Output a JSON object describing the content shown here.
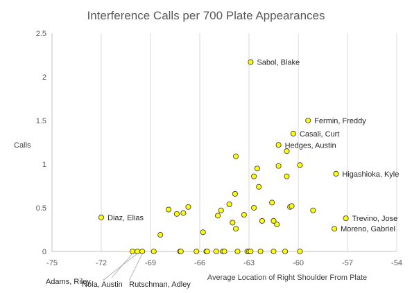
{
  "chart_data": {
    "type": "scatter",
    "title": "Interference Calls per 700 Plate Appearances",
    "xlabel": "Average Location of Right Shoulder From Plate",
    "ylabel": "Calls",
    "xlim": [
      -75,
      -54
    ],
    "ylim": [
      0,
      2.5
    ],
    "x_ticks": [
      "-75",
      "-72",
      "-69",
      "-66",
      "-63",
      "-60",
      "-57",
      "-54"
    ],
    "y_ticks": [
      "0",
      "0.5",
      "1",
      "1.5",
      "2",
      "2.5"
    ],
    "grid": "vertical-major",
    "marker_color": "#FFFF00",
    "marker_edge_color": "#404040",
    "series": [
      {
        "points": [
          {
            "x": -72.0,
            "y": 0.39,
            "label": "Diaz, Elias"
          },
          {
            "x": -70.1,
            "y": 0.0,
            "label": "Adams, Riley"
          },
          {
            "x": -69.8,
            "y": 0.0,
            "label": "Nola, Austin"
          },
          {
            "x": -69.5,
            "y": 0.0,
            "label": "Rutschman, Adley"
          },
          {
            "x": -68.8,
            "y": 0.0
          },
          {
            "x": -68.4,
            "y": 0.19
          },
          {
            "x": -67.9,
            "y": 0.48
          },
          {
            "x": -67.4,
            "y": 0.43
          },
          {
            "x": -67.2,
            "y": 0.0
          },
          {
            "x": -67.15,
            "y": 0.0
          },
          {
            "x": -67.0,
            "y": 0.44
          },
          {
            "x": -66.7,
            "y": 0.51
          },
          {
            "x": -66.2,
            "y": 0.0
          },
          {
            "x": -65.8,
            "y": 0.22
          },
          {
            "x": -65.6,
            "y": 0.0
          },
          {
            "x": -65.55,
            "y": 0.0
          },
          {
            "x": -65.0,
            "y": 0.0
          },
          {
            "x": -64.9,
            "y": 0.41
          },
          {
            "x": -64.7,
            "y": 0.47
          },
          {
            "x": -64.6,
            "y": 0.0
          },
          {
            "x": -64.5,
            "y": 0.0
          },
          {
            "x": -64.2,
            "y": 0.54
          },
          {
            "x": -64.0,
            "y": 0.33
          },
          {
            "x": -63.8,
            "y": 0.26
          },
          {
            "x": -63.85,
            "y": 0.66
          },
          {
            "x": -63.8,
            "y": 1.09
          },
          {
            "x": -63.7,
            "y": 0.0
          },
          {
            "x": -63.3,
            "y": 0.42
          },
          {
            "x": -63.1,
            "y": 0.0
          },
          {
            "x": -63.0,
            "y": 0.0
          },
          {
            "x": -62.9,
            "y": 0.0
          },
          {
            "x": -62.9,
            "y": 2.17,
            "label": "Sabol, Blake"
          },
          {
            "x": -62.7,
            "y": 0.86
          },
          {
            "x": -62.7,
            "y": 0.5
          },
          {
            "x": -62.5,
            "y": 0.95
          },
          {
            "x": -62.4,
            "y": 0.74
          },
          {
            "x": -62.3,
            "y": 0.0
          },
          {
            "x": -62.2,
            "y": 0.35
          },
          {
            "x": -61.6,
            "y": 0.56
          },
          {
            "x": -61.5,
            "y": 0.0
          },
          {
            "x": -61.5,
            "y": 0.35
          },
          {
            "x": -61.3,
            "y": 0.31
          },
          {
            "x": -61.2,
            "y": 0.98
          },
          {
            "x": -61.2,
            "y": 1.22,
            "label": "Hedges, Austin"
          },
          {
            "x": -60.8,
            "y": 0.0
          },
          {
            "x": -60.7,
            "y": 1.15
          },
          {
            "x": -60.7,
            "y": 0.86
          },
          {
            "x": -60.5,
            "y": 0.51
          },
          {
            "x": -60.4,
            "y": 0.52
          },
          {
            "x": -60.3,
            "y": 1.35,
            "label": "Casali, Curt"
          },
          {
            "x": -59.9,
            "y": 0.0
          },
          {
            "x": -59.9,
            "y": 0.99
          },
          {
            "x": -59.4,
            "y": 1.5,
            "label": "Fermin, Freddy"
          },
          {
            "x": -59.1,
            "y": 0.47
          },
          {
            "x": -57.7,
            "y": 0.89,
            "label": "Higashioka, Kyle"
          },
          {
            "x": -57.1,
            "y": 0.38,
            "label": "Trevino, Jose"
          },
          {
            "x": -57.8,
            "y": 0.26,
            "label": "Moreno, Gabriel"
          }
        ]
      }
    ]
  }
}
